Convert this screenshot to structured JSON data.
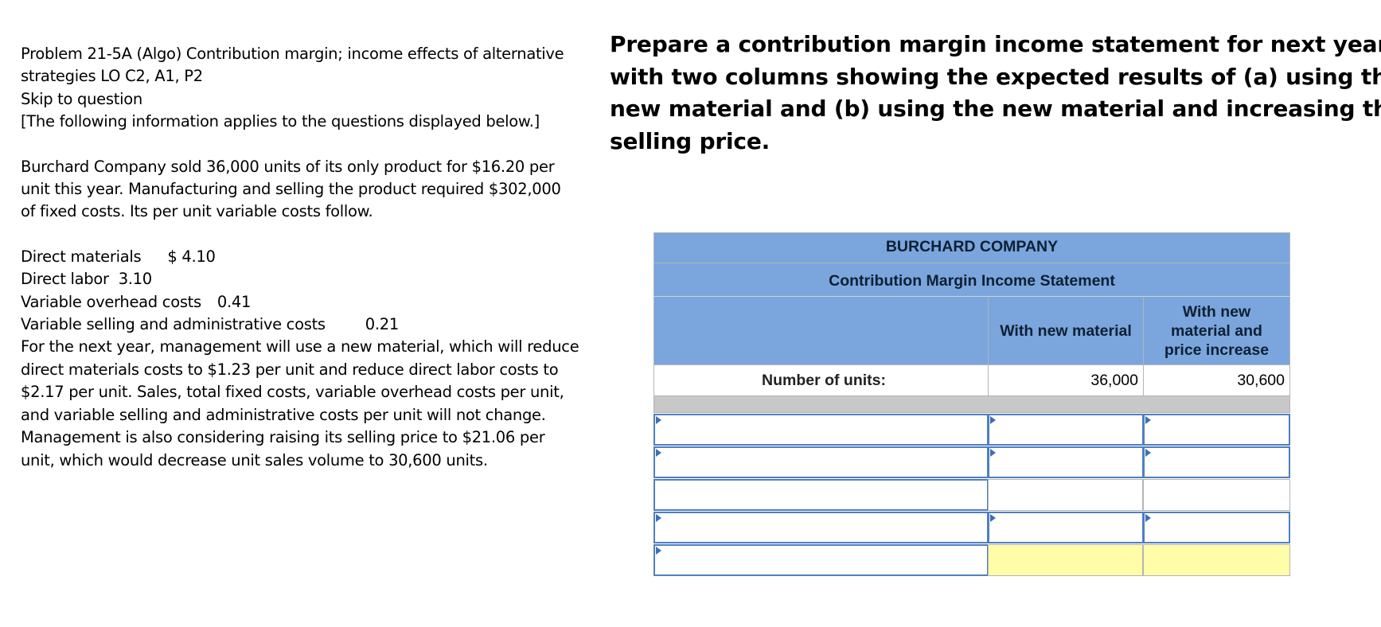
{
  "problem": {
    "title_lines": [
      "Problem 21-5A (Algo) Contribution margin; income effects of alternative",
      "strategies LO C2, A1, P2"
    ],
    "skip_link": "Skip to question",
    "info_note": "[The following information applies to the questions displayed below.]",
    "intro_lines": [
      "Burchard Company sold 36,000 units of its only product for $16.20 per",
      "unit this year. Manufacturing and selling the product required $302,000",
      "of fixed costs. Its per unit variable costs follow."
    ],
    "costs": [
      {
        "label": "Direct materials",
        "value": "$ 4.10"
      },
      {
        "label": "Direct labor",
        "value": "3.10"
      },
      {
        "label": "Variable overhead costs",
        "value": "0.41"
      },
      {
        "label": "Variable selling and administrative costs",
        "value": "0.21"
      }
    ],
    "followup_lines": [
      "For the next year, management will use a new material, which will reduce",
      "direct materials costs to $1.23 per unit and reduce direct labor costs to",
      "$2.17 per unit. Sales, total fixed costs, variable overhead costs per unit,",
      "and variable selling and administrative costs per unit will not change.",
      "Management is also considering raising its selling price to $21.06 per",
      "unit, which would decrease unit sales volume to 30,600 units."
    ]
  },
  "prompt_lines": [
    "Prepare a contribution margin income statement for next year",
    "with two columns showing the expected results of (a) using the",
    "new material and (b) using the new material and increasing the",
    "selling price."
  ],
  "statement": {
    "company": "BURCHARD COMPANY",
    "title": "Contribution Margin Income Statement",
    "col1": "With new material",
    "col2_lines": [
      "With new",
      "material and",
      "price increase"
    ],
    "units_label": "Number of units:",
    "units_col1": "36,000",
    "units_col2": "30,600"
  }
}
